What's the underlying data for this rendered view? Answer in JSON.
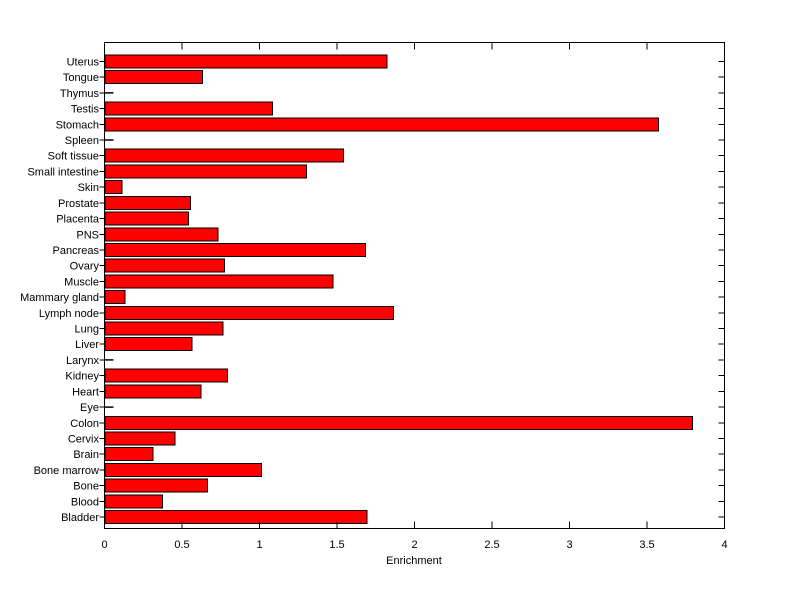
{
  "chart_data": {
    "type": "bar",
    "orientation": "horizontal",
    "title": "",
    "xlabel": "Enrichment",
    "ylabel": "",
    "xlim": [
      0,
      4
    ],
    "xticks": [
      0,
      0.5,
      1,
      1.5,
      2,
      2.5,
      3,
      3.5,
      4
    ],
    "xtick_labels": [
      "0",
      "0.5",
      "1",
      "1.5",
      "2",
      "2.5",
      "3",
      "3.5",
      "4"
    ],
    "grid": false,
    "legend": null,
    "bar_color": "#ff0000",
    "bar_edge_color": "#000000",
    "axis_color": "#000000",
    "background_color": "#ffffff",
    "categories": [
      "Bladder",
      "Blood",
      "Bone",
      "Bone marrow",
      "Brain",
      "Cervix",
      "Colon",
      "Eye",
      "Heart",
      "Kidney",
      "Larynx",
      "Liver",
      "Lung",
      "Lymph node",
      "Mammary gland",
      "Muscle",
      "Ovary",
      "Pancreas",
      "PNS",
      "Placenta",
      "Prostate",
      "Skin",
      "Small intestine",
      "Soft tissue",
      "Spleen",
      "Stomach",
      "Testis",
      "Thymus",
      "Tongue",
      "Uterus"
    ],
    "values": [
      1.69,
      0.37,
      0.66,
      1.01,
      0.31,
      0.45,
      3.79,
      0,
      0.62,
      0.79,
      0,
      0.56,
      0.76,
      1.86,
      0.13,
      1.47,
      0.77,
      1.68,
      0.73,
      0.54,
      0.55,
      0.11,
      1.3,
      1.54,
      0,
      3.57,
      1.08,
      0,
      0.63,
      1.82
    ]
  }
}
